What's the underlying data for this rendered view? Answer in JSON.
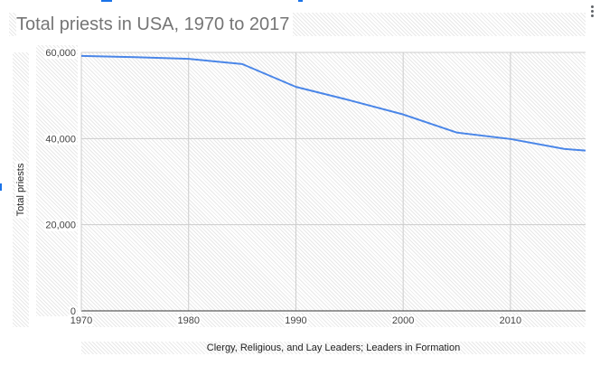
{
  "chart_data": {
    "type": "line",
    "title": "Total priests in USA, 1970 to 2017",
    "xlabel": "Clergy, Religious, and Lay Leaders; Leaders in Formation",
    "ylabel": "Total priests",
    "xlim": [
      1970,
      2017
    ],
    "ylim": [
      0,
      60000
    ],
    "x_ticks": [
      1970,
      1980,
      1990,
      2000,
      2010
    ],
    "x_tick_labels": [
      "1970",
      "1980",
      "1990",
      "2000",
      "2010"
    ],
    "y_ticks": [
      0,
      20000,
      40000,
      60000
    ],
    "y_tick_labels": [
      "0",
      "20,000",
      "40,000",
      "60,000"
    ],
    "grid": true,
    "legend": "none",
    "series": [
      {
        "name": "Total priests",
        "color": "#4a86e8",
        "x": [
          1970,
          1975,
          1980,
          1985,
          1990,
          1995,
          2000,
          2005,
          2010,
          2015,
          2017
        ],
        "values": [
          59200,
          58900,
          58500,
          57300,
          52000,
          48900,
          45600,
          41400,
          39900,
          37600,
          37200
        ]
      }
    ]
  },
  "ui": {
    "menu_icon": "more-vert-icon",
    "accent_color": "#1a73e8"
  }
}
